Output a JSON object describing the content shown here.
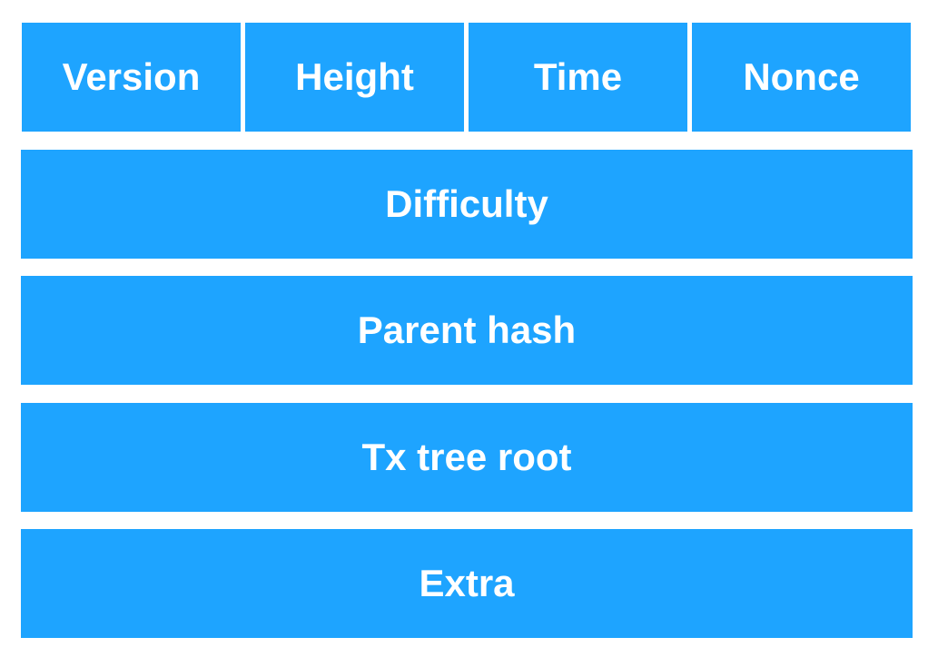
{
  "colors": {
    "field_fill": "#1ea4ff",
    "field_text": "#ffffff",
    "background": "#ffffff"
  },
  "header_fields": {
    "row1": [
      "Version",
      "Height",
      "Time",
      "Nonce"
    ],
    "difficulty": "Difficulty",
    "parent_hash": "Parent hash",
    "tx_tree_root": "Tx tree root",
    "extra": "Extra"
  }
}
